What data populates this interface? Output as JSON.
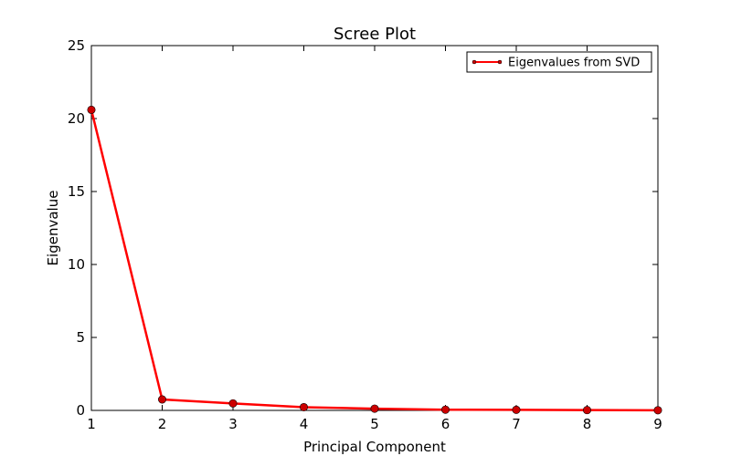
{
  "chart_data": {
    "type": "line",
    "title": "Scree Plot",
    "xlabel": "Principal Component",
    "ylabel": "Eigenvalue",
    "xlim": [
      1,
      9
    ],
    "ylim": [
      0,
      25
    ],
    "xticks": [
      1,
      2,
      3,
      4,
      5,
      6,
      7,
      8,
      9
    ],
    "yticks": [
      0,
      5,
      10,
      15,
      20,
      25
    ],
    "grid": false,
    "legend_position": "top-right",
    "series": [
      {
        "name": "Eigenvalues from SVD",
        "color": "#ff0000",
        "marker_color": "#cc0000",
        "x": [
          1,
          2,
          3,
          4,
          5,
          6,
          7,
          8,
          9
        ],
        "values": [
          20.6,
          0.75,
          0.48,
          0.22,
          0.12,
          0.05,
          0.04,
          0.02,
          0.01
        ]
      }
    ]
  }
}
